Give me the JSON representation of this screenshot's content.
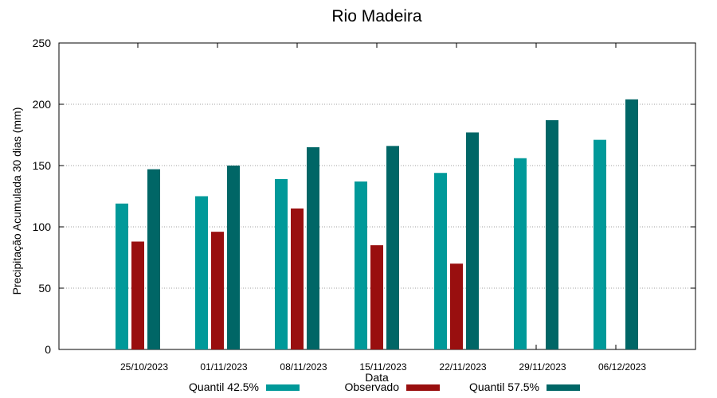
{
  "chart_data": {
    "type": "bar",
    "title": "Rio Madeira",
    "xlabel": "Data",
    "ylabel": "Precipitação Acumulada 30 dias (mm)",
    "ylim": [
      0,
      250
    ],
    "yticks": [
      0,
      50,
      100,
      150,
      200,
      250
    ],
    "grid": true,
    "legend_position": "bottom",
    "categories": [
      "25/10/2023",
      "01/11/2023",
      "08/11/2023",
      "15/11/2023",
      "22/11/2023",
      "29/11/2023",
      "06/12/2023"
    ],
    "series": [
      {
        "name": "Quantil 42.5%",
        "color": "#009999",
        "values": [
          119,
          125,
          139,
          137,
          144,
          156,
          171
        ]
      },
      {
        "name": "Observado",
        "color": "#990f0f",
        "values": [
          88,
          96,
          115,
          85,
          70,
          null,
          null
        ]
      },
      {
        "name": "Quantil 57.5%",
        "color": "#006666",
        "values": [
          147,
          150,
          165,
          166,
          177,
          187,
          204
        ]
      }
    ]
  }
}
